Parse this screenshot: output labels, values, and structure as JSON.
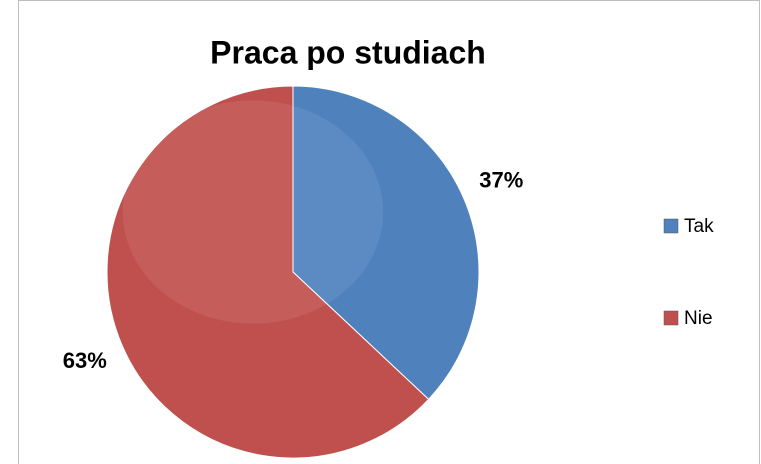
{
  "chart_data": {
    "type": "pie",
    "title": "Praca po studiach",
    "categories": [
      "Tak",
      "Nie"
    ],
    "values": [
      37,
      63
    ],
    "value_labels": [
      "37%",
      "63%"
    ],
    "colors": [
      "#4f81bd",
      "#c0504d"
    ],
    "legend": "right"
  }
}
